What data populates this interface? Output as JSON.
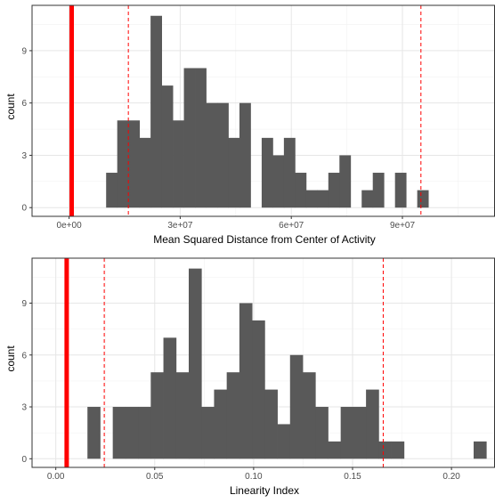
{
  "chart_data": [
    {
      "type": "histogram",
      "title": "",
      "xlabel": "Mean Squared Distance from Center of Activity",
      "ylabel": "count",
      "xlim": [
        -10000000,
        115000000
      ],
      "ylim": [
        -0.5,
        11.6
      ],
      "bin_width": 3000000,
      "bins": [
        {
          "x0": 10000000,
          "x1": 13000000,
          "count": 2
        },
        {
          "x0": 13000000,
          "x1": 16000000,
          "count": 5
        },
        {
          "x0": 16000000,
          "x1": 19000000,
          "count": 5
        },
        {
          "x0": 19000000,
          "x1": 22000000,
          "count": 4
        },
        {
          "x0": 22000000,
          "x1": 25000000,
          "count": 11
        },
        {
          "x0": 25000000,
          "x1": 28000000,
          "count": 7
        },
        {
          "x0": 28000000,
          "x1": 31000000,
          "count": 5
        },
        {
          "x0": 31000000,
          "x1": 34000000,
          "count": 8
        },
        {
          "x0": 34000000,
          "x1": 37000000,
          "count": 8
        },
        {
          "x0": 37000000,
          "x1": 40000000,
          "count": 6
        },
        {
          "x0": 40000000,
          "x1": 43000000,
          "count": 6
        },
        {
          "x0": 43000000,
          "x1": 46000000,
          "count": 4
        },
        {
          "x0": 46000000,
          "x1": 49000000,
          "count": 6
        },
        {
          "x0": 52000000,
          "x1": 55000000,
          "count": 4
        },
        {
          "x0": 55000000,
          "x1": 58000000,
          "count": 3
        },
        {
          "x0": 58000000,
          "x1": 61000000,
          "count": 4
        },
        {
          "x0": 61000000,
          "x1": 64000000,
          "count": 2
        },
        {
          "x0": 64000000,
          "x1": 67000000,
          "count": 1
        },
        {
          "x0": 67000000,
          "x1": 70000000,
          "count": 1
        },
        {
          "x0": 70000000,
          "x1": 73000000,
          "count": 2
        },
        {
          "x0": 73000000,
          "x1": 76000000,
          "count": 3
        },
        {
          "x0": 79000000,
          "x1": 82000000,
          "count": 1
        },
        {
          "x0": 82000000,
          "x1": 85000000,
          "count": 2
        },
        {
          "x0": 88000000,
          "x1": 91000000,
          "count": 2
        },
        {
          "x0": 94000000,
          "x1": 97000000,
          "count": 1
        }
      ],
      "x_ticks": [
        0,
        30000000,
        60000000,
        90000000
      ],
      "x_tick_labels": [
        "0e+00",
        "3e+07",
        "6e+07",
        "9e+07"
      ],
      "y_ticks": [
        0,
        3,
        6,
        9
      ],
      "y_tick_labels": [
        "0",
        "3",
        "6",
        "9"
      ],
      "observed_line": 700000,
      "dashed_lines": [
        16000000,
        95000000
      ],
      "bar_color": "#595959",
      "observed_color": "#ff0000",
      "dashed_color": "#ff0000",
      "grid": true
    },
    {
      "type": "histogram",
      "title": "",
      "xlabel": "Linearity Index",
      "ylabel": "count",
      "xlim": [
        -0.012,
        0.222
      ],
      "ylim": [
        -0.5,
        11.6
      ],
      "bin_width": 0.0064,
      "bins": [
        {
          "x0": 0.016,
          "x1": 0.0224,
          "count": 3
        },
        {
          "x0": 0.0288,
          "x1": 0.0352,
          "count": 3
        },
        {
          "x0": 0.0352,
          "x1": 0.0416,
          "count": 3
        },
        {
          "x0": 0.0416,
          "x1": 0.048,
          "count": 3
        },
        {
          "x0": 0.048,
          "x1": 0.0544,
          "count": 5
        },
        {
          "x0": 0.0544,
          "x1": 0.0608,
          "count": 7
        },
        {
          "x0": 0.0608,
          "x1": 0.0672,
          "count": 5
        },
        {
          "x0": 0.0672,
          "x1": 0.0736,
          "count": 11
        },
        {
          "x0": 0.0736,
          "x1": 0.08,
          "count": 3
        },
        {
          "x0": 0.08,
          "x1": 0.0864,
          "count": 4
        },
        {
          "x0": 0.0864,
          "x1": 0.0928,
          "count": 5
        },
        {
          "x0": 0.0928,
          "x1": 0.0992,
          "count": 9
        },
        {
          "x0": 0.0992,
          "x1": 0.1056,
          "count": 8
        },
        {
          "x0": 0.1056,
          "x1": 0.112,
          "count": 4
        },
        {
          "x0": 0.112,
          "x1": 0.1184,
          "count": 2
        },
        {
          "x0": 0.1184,
          "x1": 0.1248,
          "count": 6
        },
        {
          "x0": 0.1248,
          "x1": 0.1312,
          "count": 5
        },
        {
          "x0": 0.1312,
          "x1": 0.1376,
          "count": 3
        },
        {
          "x0": 0.1376,
          "x1": 0.144,
          "count": 1
        },
        {
          "x0": 0.144,
          "x1": 0.1504,
          "count": 3
        },
        {
          "x0": 0.1504,
          "x1": 0.1568,
          "count": 3
        },
        {
          "x0": 0.1568,
          "x1": 0.1632,
          "count": 4
        },
        {
          "x0": 0.1632,
          "x1": 0.1696,
          "count": 1
        },
        {
          "x0": 0.1696,
          "x1": 0.176,
          "count": 1
        },
        {
          "x0": 0.2112,
          "x1": 0.2176,
          "count": 1
        }
      ],
      "x_ticks": [
        0.0,
        0.05,
        0.1,
        0.15,
        0.2
      ],
      "x_tick_labels": [
        "0.00",
        "0.05",
        "0.10",
        "0.15",
        "0.20"
      ],
      "y_ticks": [
        0,
        3,
        6,
        9
      ],
      "y_tick_labels": [
        "0",
        "3",
        "6",
        "9"
      ],
      "observed_line": 0.0055,
      "dashed_lines": [
        0.0245,
        0.1655
      ],
      "bar_color": "#595959",
      "observed_color": "#ff0000",
      "dashed_color": "#ff0000",
      "grid": true
    }
  ]
}
